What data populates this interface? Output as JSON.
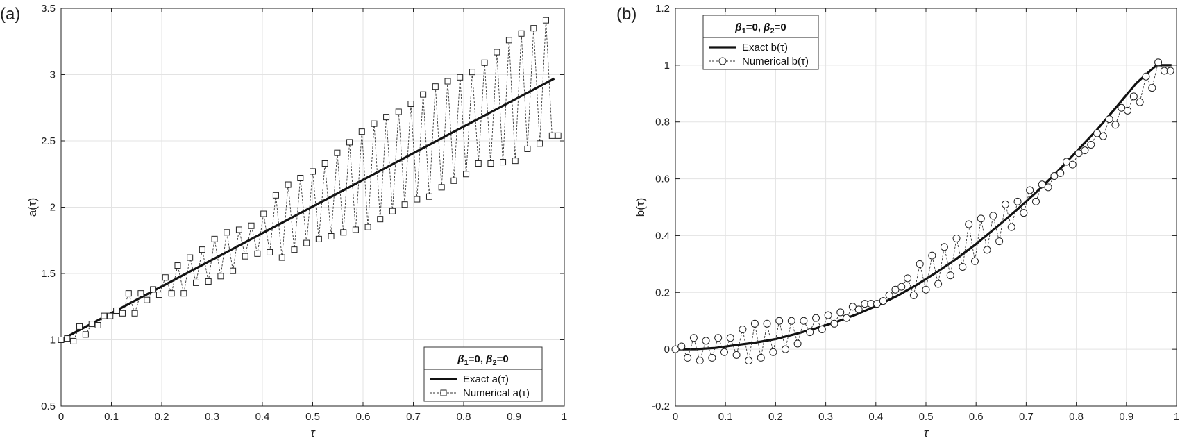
{
  "chart_data": [
    {
      "type": "line",
      "panel_label": "(a)",
      "title": "",
      "xlabel": "τ",
      "ylabel": "a(τ)",
      "xlim": [
        0,
        1
      ],
      "ylim": [
        0.5,
        3.5
      ],
      "xticks": [
        "0",
        "0.1",
        "0.2",
        "0.3",
        "0.4",
        "0.5",
        "0.6",
        "0.7",
        "0.8",
        "0.9",
        "1"
      ],
      "yticks": [
        "0.5",
        "1",
        "1.5",
        "2",
        "2.5",
        "3",
        "3.5"
      ],
      "grid": true,
      "legend": {
        "position": "bottom-right",
        "title_parts": [
          "β",
          "1",
          "=0, ",
          "β",
          "2",
          "=0"
        ],
        "entries": [
          "Exact a(τ)",
          "Numerical a(τ)"
        ]
      },
      "series": [
        {
          "name": "Exact a(τ)",
          "style": "solid",
          "x": [
            0,
            0.98
          ],
          "y": [
            1.0,
            2.97
          ]
        },
        {
          "name": "Numerical a(τ)",
          "style": "dotted",
          "marker": "square",
          "x": [
            0.0,
            0.0122,
            0.0244,
            0.0366,
            0.0488,
            0.061,
            0.0732,
            0.0854,
            0.0976,
            0.1098,
            0.122,
            0.1342,
            0.1463,
            0.1585,
            0.1707,
            0.1829,
            0.1951,
            0.2073,
            0.2195,
            0.2317,
            0.2439,
            0.2561,
            0.2683,
            0.2805,
            0.2927,
            0.3049,
            0.3171,
            0.3293,
            0.3415,
            0.3537,
            0.3659,
            0.378,
            0.3902,
            0.4024,
            0.4146,
            0.4268,
            0.439,
            0.4512,
            0.4634,
            0.4756,
            0.4878,
            0.5,
            0.5122,
            0.5244,
            0.5366,
            0.5488,
            0.561,
            0.5732,
            0.5854,
            0.5976,
            0.6098,
            0.622,
            0.6341,
            0.6463,
            0.6585,
            0.6707,
            0.6829,
            0.6951,
            0.7073,
            0.7195,
            0.7317,
            0.7439,
            0.7561,
            0.7683,
            0.7805,
            0.7927,
            0.8049,
            0.8171,
            0.8293,
            0.8415,
            0.8537,
            0.8659,
            0.878,
            0.8902,
            0.9024,
            0.9146,
            0.9268,
            0.939,
            0.9512,
            0.9634,
            0.9756,
            0.9878
          ],
          "y": [
            1.0,
            1.01,
            0.99,
            1.1,
            1.04,
            1.12,
            1.11,
            1.18,
            1.18,
            1.22,
            1.2,
            1.35,
            1.2,
            1.35,
            1.3,
            1.38,
            1.34,
            1.47,
            1.35,
            1.56,
            1.35,
            1.62,
            1.43,
            1.68,
            1.44,
            1.76,
            1.48,
            1.81,
            1.52,
            1.83,
            1.63,
            1.86,
            1.65,
            1.95,
            1.66,
            2.09,
            1.62,
            2.17,
            1.68,
            2.22,
            1.73,
            2.27,
            1.76,
            2.33,
            1.78,
            2.41,
            1.81,
            2.49,
            1.83,
            2.57,
            1.85,
            2.63,
            1.91,
            2.68,
            1.97,
            2.72,
            2.02,
            2.78,
            2.06,
            2.85,
            2.08,
            2.91,
            2.15,
            2.95,
            2.2,
            2.98,
            2.25,
            3.02,
            2.33,
            3.09,
            2.33,
            3.17,
            2.34,
            3.26,
            2.35,
            3.31,
            2.44,
            3.35,
            2.48,
            3.41,
            2.54,
            2.54
          ]
        }
      ]
    },
    {
      "type": "line",
      "panel_label": "(b)",
      "title": "",
      "xlabel": "τ",
      "ylabel": "b(τ)",
      "xlim": [
        0,
        1
      ],
      "ylim": [
        -0.2,
        1.2
      ],
      "xticks": [
        "0",
        "0.1",
        "0.2",
        "0.3",
        "0.4",
        "0.5",
        "0.6",
        "0.7",
        "0.8",
        "0.9",
        "1"
      ],
      "yticks": [
        "-0.2",
        "0",
        "0.2",
        "0.4",
        "0.6",
        "0.8",
        "1",
        "1.2"
      ],
      "grid": true,
      "legend": {
        "position": "top-left",
        "title_parts": [
          "β",
          "1",
          "=0, ",
          "β",
          "2",
          "=0"
        ],
        "entries": [
          "Exact b(τ)",
          "Numerical b(τ)"
        ]
      },
      "series": [
        {
          "name": "Exact b(τ)",
          "style": "solid",
          "x": [
            0.0,
            0.04,
            0.08,
            0.12,
            0.16,
            0.2,
            0.24,
            0.28,
            0.32,
            0.36,
            0.4,
            0.44,
            0.48,
            0.52,
            0.56,
            0.6,
            0.64,
            0.68,
            0.72,
            0.76,
            0.8,
            0.84,
            0.88,
            0.92,
            0.96,
            0.99
          ],
          "y": [
            0.0,
            0.0004,
            0.0047,
            0.0144,
            0.0236,
            0.036,
            0.0536,
            0.0737,
            0.0955,
            0.1217,
            0.1518,
            0.1853,
            0.2252,
            0.2694,
            0.3173,
            0.3706,
            0.4286,
            0.4885,
            0.5524,
            0.6209,
            0.6953,
            0.7702,
            0.8528,
            0.9368,
            1.0,
            1.0
          ]
        },
        {
          "name": "Numerical b(τ)",
          "style": "dotted",
          "marker": "circle",
          "x": [
            0.0,
            0.0122,
            0.0244,
            0.0366,
            0.0488,
            0.061,
            0.0732,
            0.0854,
            0.0976,
            0.1098,
            0.122,
            0.1342,
            0.1463,
            0.1585,
            0.1707,
            0.1829,
            0.1951,
            0.2073,
            0.2195,
            0.2317,
            0.2439,
            0.2561,
            0.2683,
            0.2805,
            0.2927,
            0.3049,
            0.3171,
            0.3293,
            0.3415,
            0.3537,
            0.3659,
            0.378,
            0.3902,
            0.4024,
            0.4146,
            0.4268,
            0.439,
            0.4512,
            0.4634,
            0.4756,
            0.4878,
            0.5,
            0.5122,
            0.5244,
            0.5366,
            0.5488,
            0.561,
            0.5732,
            0.5854,
            0.5976,
            0.6098,
            0.622,
            0.6341,
            0.6463,
            0.6585,
            0.6707,
            0.6829,
            0.6951,
            0.7073,
            0.7195,
            0.7317,
            0.7439,
            0.7561,
            0.7683,
            0.7805,
            0.7927,
            0.8049,
            0.8171,
            0.8293,
            0.8415,
            0.8537,
            0.8659,
            0.878,
            0.8902,
            0.9024,
            0.9146,
            0.9268,
            0.939,
            0.9512,
            0.9634,
            0.9756,
            0.9878
          ],
          "y": [
            0.0,
            0.01,
            -0.03,
            0.04,
            -0.04,
            0.03,
            -0.03,
            0.04,
            -0.01,
            0.04,
            -0.02,
            0.07,
            -0.04,
            0.09,
            -0.03,
            0.09,
            -0.01,
            0.1,
            0.0,
            0.1,
            0.02,
            0.1,
            0.06,
            0.11,
            0.07,
            0.12,
            0.09,
            0.13,
            0.11,
            0.15,
            0.14,
            0.16,
            0.16,
            0.16,
            0.17,
            0.19,
            0.21,
            0.22,
            0.25,
            0.19,
            0.3,
            0.21,
            0.33,
            0.23,
            0.36,
            0.26,
            0.39,
            0.29,
            0.44,
            0.31,
            0.46,
            0.35,
            0.47,
            0.38,
            0.51,
            0.43,
            0.52,
            0.48,
            0.56,
            0.52,
            0.58,
            0.57,
            0.61,
            0.62,
            0.66,
            0.65,
            0.69,
            0.7,
            0.72,
            0.76,
            0.75,
            0.81,
            0.79,
            0.85,
            0.84,
            0.89,
            0.87,
            0.96,
            0.92,
            1.01,
            0.98,
            0.98
          ]
        }
      ]
    }
  ]
}
